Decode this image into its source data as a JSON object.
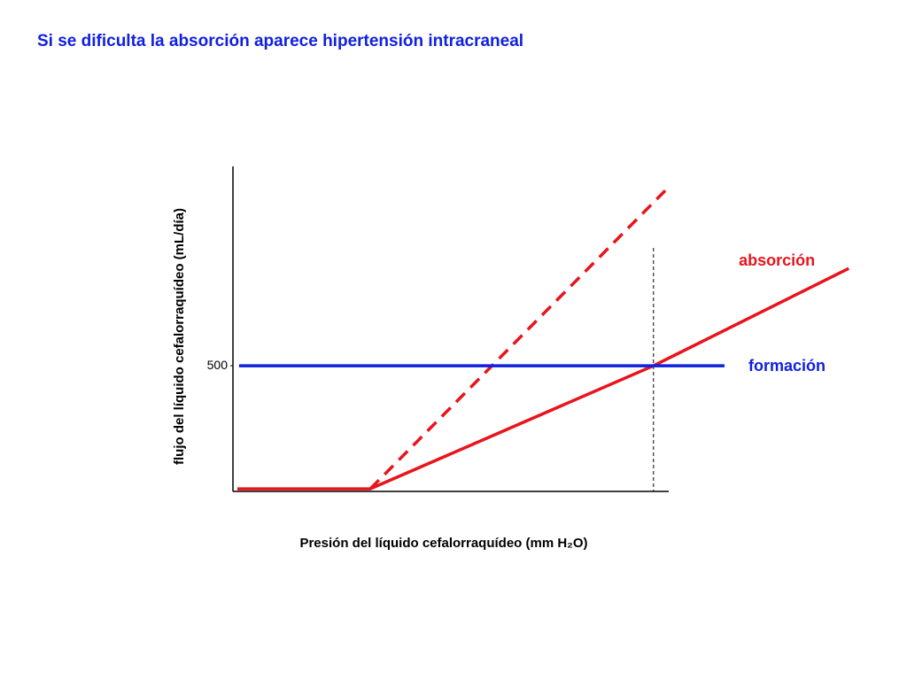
{
  "chart_data": {
    "type": "line",
    "title": "Si se dificulta la absorción aparece hipertensión intracraneal",
    "x_label": "Presión del líquido cefalorraquídeo (mm H₂O)",
    "y_label": "flujo del líquido cefalorraquídeo (mL/día)",
    "xlim": [
      0,
      100
    ],
    "ylim": [
      0,
      1300
    ],
    "yticks": [
      500
    ],
    "reference_x": 96.5,
    "series": [
      {
        "name": "absorción",
        "color": "#e8141c",
        "dashed": false,
        "x": [
          1,
          31.5,
          96.5,
          141.3
        ],
        "values": [
          10,
          10,
          500,
          887
        ]
      },
      {
        "color": "#e8141c",
        "dashed": true,
        "x": [
          31.5,
          99.2
        ],
        "values": [
          10,
          1197
        ]
      },
      {
        "name": "formación",
        "color": "#1020e0",
        "dashed": false,
        "x": [
          1.4,
          112.8
        ],
        "values": [
          500,
          500
        ]
      }
    ]
  }
}
